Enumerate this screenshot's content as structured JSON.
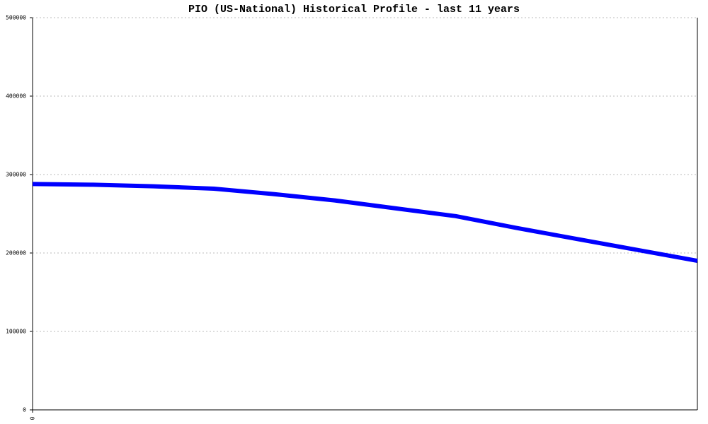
{
  "chart_data": {
    "type": "line",
    "title": "PIO (US-National) Historical Profile - last 11 years",
    "x": [
      0,
      1,
      2,
      3,
      4,
      5,
      6,
      7,
      8,
      9,
      10,
      11
    ],
    "xlim": [
      0,
      11
    ],
    "xticks": [
      0
    ],
    "series": [
      {
        "name": "PIO",
        "color": "#0000ff",
        "values": [
          288000,
          287000,
          285000,
          282000,
          275000,
          267000,
          257000,
          247000,
          232000,
          218000,
          204000,
          190000
        ]
      }
    ],
    "ylim": [
      0,
      500000
    ],
    "yticks": [
      0,
      100000,
      200000,
      300000,
      400000,
      500000
    ],
    "grid": true
  }
}
